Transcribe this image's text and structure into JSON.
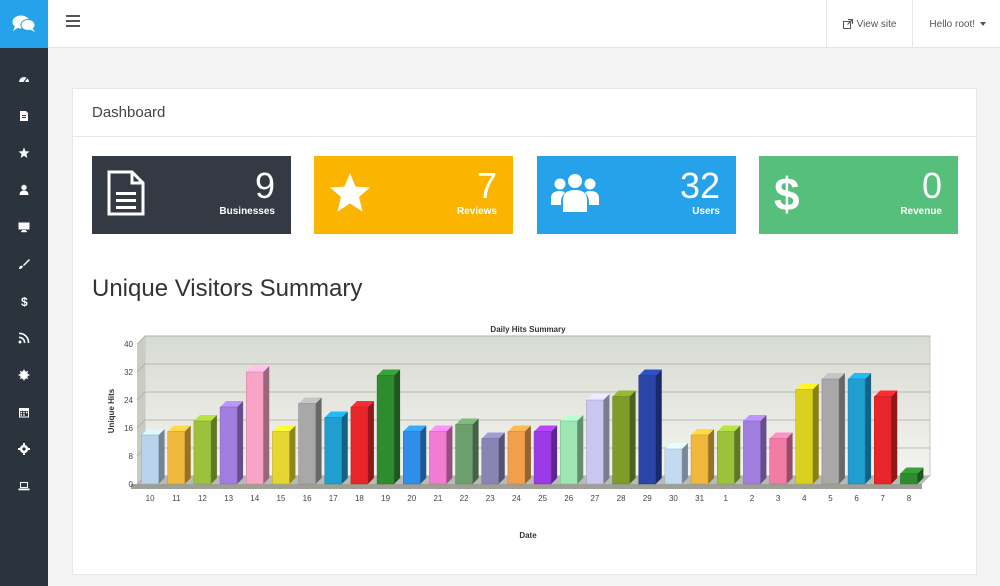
{
  "topbar": {
    "view_site": "View site",
    "user_menu": "Hello root!"
  },
  "panel": {
    "title": "Dashboard"
  },
  "stats": [
    {
      "value": "9",
      "label": "Businesses",
      "color": "#333a43",
      "icon": "document-icon"
    },
    {
      "value": "7",
      "label": "Reviews",
      "color": "#fbb400",
      "icon": "star-icon"
    },
    {
      "value": "32",
      "label": "Users",
      "color": "#25a2ea",
      "icon": "users-icon"
    },
    {
      "value": "0",
      "label": "Revenue",
      "color": "#56bf7b",
      "icon": "dollar-icon"
    }
  ],
  "section_title": "Unique Visitors Summary",
  "sidebar": {
    "icons": [
      "dashboard-icon",
      "file-icon",
      "star-icon",
      "user-icon",
      "monitor-icon",
      "brush-icon",
      "dollar-icon",
      "rss-icon",
      "gear-burst-icon",
      "calendar-icon",
      "settings-icon",
      "laptop-icon"
    ]
  },
  "chart_data": {
    "type": "bar",
    "title": "Daily Hits Summary",
    "xlabel": "Date",
    "ylabel": "Unique Hits",
    "ylim": [
      0,
      40
    ],
    "yticks": [
      0,
      8,
      16,
      24,
      32,
      40
    ],
    "categories": [
      "10",
      "11",
      "12",
      "13",
      "14",
      "15",
      "16",
      "17",
      "18",
      "19",
      "20",
      "21",
      "22",
      "23",
      "24",
      "25",
      "26",
      "27",
      "28",
      "29",
      "30",
      "31",
      "1",
      "2",
      "3",
      "4",
      "5",
      "6",
      "7",
      "8"
    ],
    "values": [
      14,
      15,
      18,
      22,
      32,
      15,
      23,
      19,
      22,
      31,
      15,
      15,
      17,
      13,
      15,
      15,
      18,
      24,
      25,
      31,
      10,
      14,
      15,
      18,
      13,
      27,
      30,
      30,
      25,
      3
    ],
    "colors": [
      "#b9d3ee",
      "#f0b83c",
      "#9bc23a",
      "#a17de0",
      "#f7a4c6",
      "#e6d630",
      "#a8a8a8",
      "#1f9ed0",
      "#e8262a",
      "#2e8c2e",
      "#2f8fe8",
      "#f27cd2",
      "#6d9e6d",
      "#8885b5",
      "#f29e4a",
      "#9b3ae6",
      "#9ee6b4",
      "#c9c6ef",
      "#7f9c2a",
      "#2a44a8",
      "#c2daf2",
      "#f0b83c",
      "#9bc23a",
      "#a17de0",
      "#f27ca6",
      "#d9d020",
      "#a8a8a8",
      "#1f9ed0",
      "#e8262a",
      "#2e8c2e"
    ],
    "grid": true,
    "legend": "none"
  }
}
